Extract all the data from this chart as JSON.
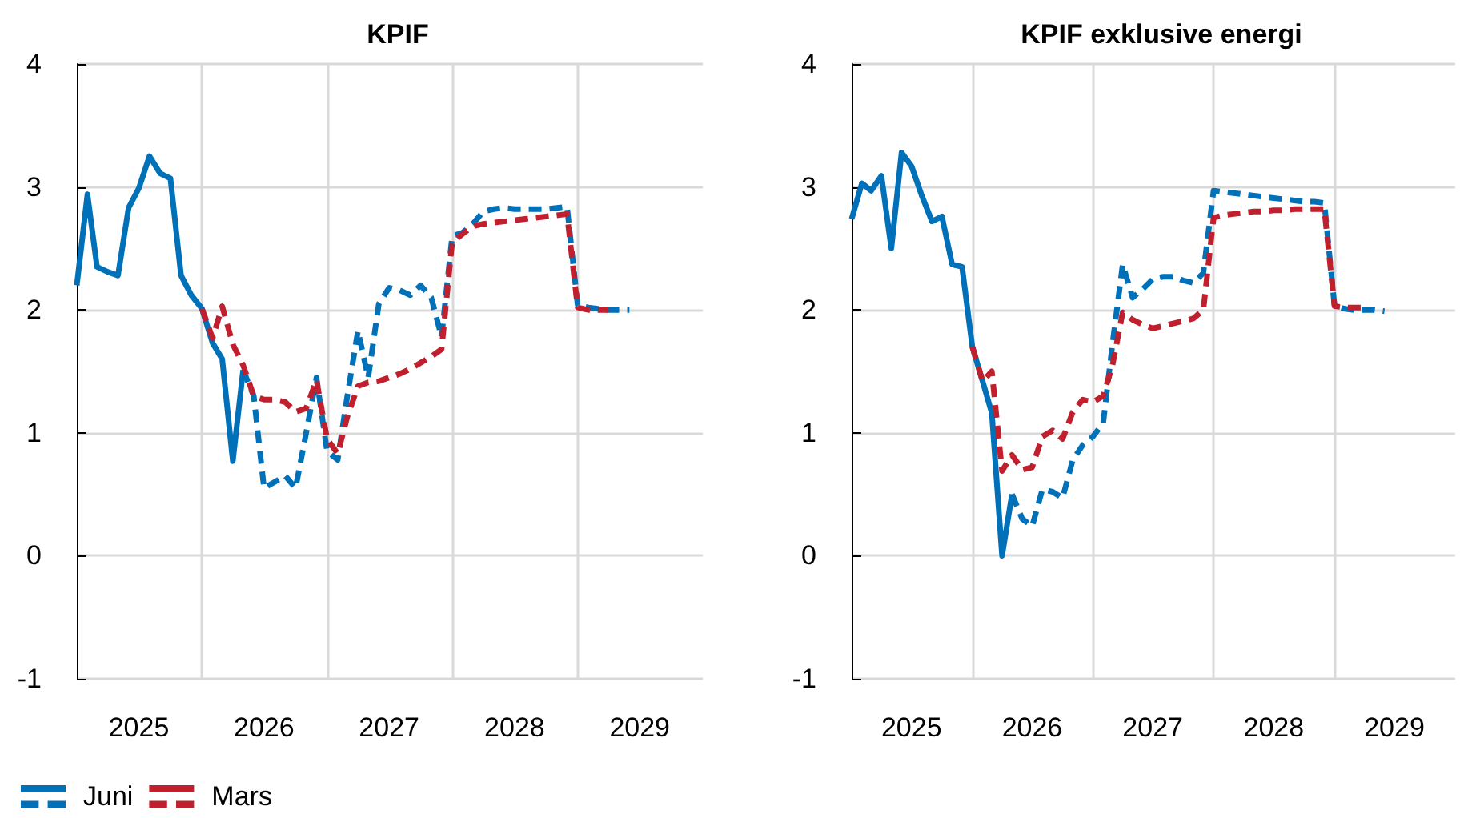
{
  "chart_data": [
    {
      "type": "line",
      "title": "KPIF",
      "xlim": [
        "2025-01",
        "2030-01"
      ],
      "xticks": [
        {
          "value": "2025-07",
          "label": "2025"
        },
        {
          "value": "2026-01",
          "label": null
        },
        {
          "value": "2026-07",
          "label": "2026"
        },
        {
          "value": "2027-01",
          "label": null
        },
        {
          "value": "2027-07",
          "label": "2027"
        },
        {
          "value": "2028-01",
          "label": null
        },
        {
          "value": "2028-07",
          "label": "2028"
        },
        {
          "value": "2029-01",
          "label": null
        },
        {
          "value": "2029-07",
          "label": "2029"
        }
      ],
      "ylim": [
        -1,
        4
      ],
      "yticks": [
        -1,
        0,
        1,
        2,
        3,
        4
      ],
      "grid": true,
      "legend": "bottom left",
      "marker": "none",
      "series": [
        {
          "name": "Juni",
          "color": "#0070b8",
          "line_style": "solid",
          "x": [
            "2025-01",
            "2025-02",
            "2025-03",
            "2025-04",
            "2025-05",
            "2025-06",
            "2025-07",
            "2025-08",
            "2025-09",
            "2025-10",
            "2025-11",
            "2025-12",
            "2026-01",
            "2026-02",
            "2026-03",
            "2026-04",
            "2026-05"
          ],
          "values": [
            2.2,
            2.94,
            2.35,
            2.31,
            2.28,
            2.83,
            2.99,
            3.25,
            3.11,
            3.07,
            2.28,
            2.12,
            2.01,
            1.73,
            1.6,
            0.77,
            1.51
          ]
        },
        {
          "color": "#0070b8",
          "line_style": "dashed",
          "x": [
            "2026-05",
            "2026-06",
            "2026-07",
            "2026-08",
            "2026-09",
            "2026-10",
            "2026-11",
            "2026-12",
            "2027-01",
            "2027-02",
            "2027-03",
            "2027-04",
            "2027-05",
            "2027-06",
            "2027-07",
            "2027-08",
            "2027-09",
            "2027-10",
            "2027-11",
            "2027-12",
            "2028-01",
            "2028-02",
            "2028-03",
            "2028-04",
            "2028-05",
            "2028-06",
            "2028-07",
            "2028-08",
            "2028-09",
            "2028-10",
            "2028-11",
            "2028-12",
            "2029-01",
            "2029-02",
            "2029-03",
            "2029-04",
            "2029-05",
            "2029-06"
          ],
          "values": [
            1.51,
            1.3,
            0.55,
            0.6,
            0.65,
            0.55,
            1.0,
            1.45,
            0.85,
            0.78,
            1.3,
            1.83,
            1.45,
            2.05,
            2.18,
            2.16,
            2.12,
            2.2,
            2.1,
            1.78,
            2.6,
            2.63,
            2.7,
            2.8,
            2.82,
            2.83,
            2.82,
            2.82,
            2.82,
            2.82,
            2.83,
            2.84,
            2.04,
            2.02,
            2.01,
            2.0,
            2.0,
            2.0
          ]
        },
        {
          "name": "Mars",
          "color": "#c0202e",
          "line_style": "dashed",
          "x": [
            "2026-01",
            "2026-02",
            "2026-03",
            "2026-04",
            "2026-05",
            "2026-06",
            "2026-07",
            "2026-08",
            "2026-09",
            "2026-10",
            "2026-11",
            "2026-12",
            "2027-01",
            "2027-02",
            "2027-03",
            "2027-04",
            "2027-05",
            "2027-06",
            "2027-07",
            "2027-08",
            "2027-09",
            "2027-10",
            "2027-11",
            "2027-12",
            "2028-01",
            "2028-02",
            "2028-03",
            "2028-04",
            "2028-05",
            "2028-06",
            "2028-07",
            "2028-08",
            "2028-09",
            "2028-10",
            "2028-11",
            "2028-12",
            "2029-01",
            "2029-02",
            "2029-03",
            "2029-04"
          ],
          "values": [
            2.01,
            1.77,
            2.03,
            1.72,
            1.55,
            1.3,
            1.27,
            1.27,
            1.25,
            1.17,
            1.2,
            1.43,
            0.95,
            0.83,
            1.13,
            1.38,
            1.41,
            1.42,
            1.45,
            1.48,
            1.52,
            1.57,
            1.62,
            1.68,
            2.55,
            2.62,
            2.68,
            2.7,
            2.71,
            2.72,
            2.73,
            2.74,
            2.75,
            2.76,
            2.77,
            2.78,
            2.02,
            2.0,
            2.0,
            2.0
          ]
        }
      ]
    },
    {
      "type": "line",
      "title": "KPIF exklusive energi",
      "xlim": [
        "2025-01",
        "2030-01"
      ],
      "xticks": [
        {
          "value": "2025-07",
          "label": "2025"
        },
        {
          "value": "2026-01",
          "label": null
        },
        {
          "value": "2026-07",
          "label": "2026"
        },
        {
          "value": "2027-01",
          "label": null
        },
        {
          "value": "2027-07",
          "label": "2027"
        },
        {
          "value": "2028-01",
          "label": null
        },
        {
          "value": "2028-07",
          "label": "2028"
        },
        {
          "value": "2029-01",
          "label": null
        },
        {
          "value": "2029-07",
          "label": "2029"
        }
      ],
      "ylim": [
        -1,
        4
      ],
      "yticks": [
        -1,
        0,
        1,
        2,
        3,
        4
      ],
      "grid": true,
      "marker": "none",
      "series": [
        {
          "color": "#0070b8",
          "line_style": "solid",
          "x": [
            "2025-01",
            "2025-02",
            "2025-03",
            "2025-04",
            "2025-05",
            "2025-06",
            "2025-07",
            "2025-08",
            "2025-09",
            "2025-10",
            "2025-11",
            "2025-12",
            "2026-01",
            "2026-02",
            "2026-03",
            "2026-04",
            "2026-05"
          ],
          "values": [
            2.74,
            3.03,
            2.97,
            3.09,
            2.5,
            3.28,
            3.17,
            2.93,
            2.72,
            2.76,
            2.37,
            2.35,
            1.7,
            1.42,
            1.16,
            0.0,
            0.5
          ]
        },
        {
          "color": "#0070b8",
          "line_style": "dashed",
          "x": [
            "2026-05",
            "2026-06",
            "2026-07",
            "2026-08",
            "2026-09",
            "2026-10",
            "2026-11",
            "2026-12",
            "2027-01",
            "2027-02",
            "2027-03",
            "2027-04",
            "2027-05",
            "2027-06",
            "2027-07",
            "2027-08",
            "2027-09",
            "2027-10",
            "2027-11",
            "2027-12",
            "2028-01",
            "2028-02",
            "2028-03",
            "2028-04",
            "2028-05",
            "2028-06",
            "2028-07",
            "2028-08",
            "2028-09",
            "2028-10",
            "2028-11",
            "2028-12",
            "2029-01",
            "2029-02",
            "2029-03",
            "2029-04",
            "2029-05",
            "2029-06"
          ],
          "values": [
            0.5,
            0.3,
            0.24,
            0.54,
            0.52,
            0.47,
            0.78,
            0.9,
            0.97,
            1.08,
            1.72,
            2.37,
            2.1,
            2.17,
            2.25,
            2.27,
            2.27,
            2.24,
            2.22,
            2.3,
            2.97,
            2.96,
            2.95,
            2.94,
            2.93,
            2.92,
            2.91,
            2.9,
            2.89,
            2.88,
            2.88,
            2.87,
            2.03,
            2.01,
            2.0,
            2.0,
            2.0,
            1.99
          ]
        },
        {
          "color": "#c0202e",
          "line_style": "dashed",
          "x": [
            "2026-01",
            "2026-02",
            "2026-03",
            "2026-04",
            "2026-05",
            "2026-06",
            "2026-07",
            "2026-08",
            "2026-09",
            "2026-10",
            "2026-11",
            "2026-12",
            "2027-01",
            "2027-02",
            "2027-03",
            "2027-04",
            "2027-05",
            "2027-06",
            "2027-07",
            "2027-08",
            "2027-09",
            "2027-10",
            "2027-11",
            "2027-12",
            "2028-01",
            "2028-02",
            "2028-03",
            "2028-04",
            "2028-05",
            "2028-06",
            "2028-07",
            "2028-08",
            "2028-09",
            "2028-10",
            "2028-11",
            "2028-12",
            "2029-01",
            "2029-02",
            "2029-03",
            "2029-04"
          ],
          "values": [
            1.7,
            1.42,
            1.5,
            0.69,
            0.82,
            0.7,
            0.72,
            0.97,
            1.02,
            0.95,
            1.17,
            1.27,
            1.25,
            1.3,
            1.55,
            1.98,
            1.92,
            1.88,
            1.85,
            1.87,
            1.89,
            1.91,
            1.93,
            2.0,
            2.75,
            2.77,
            2.78,
            2.79,
            2.8,
            2.8,
            2.81,
            2.81,
            2.82,
            2.82,
            2.82,
            2.82,
            2.03,
            2.02,
            2.02,
            2.02
          ]
        }
      ]
    }
  ]
}
